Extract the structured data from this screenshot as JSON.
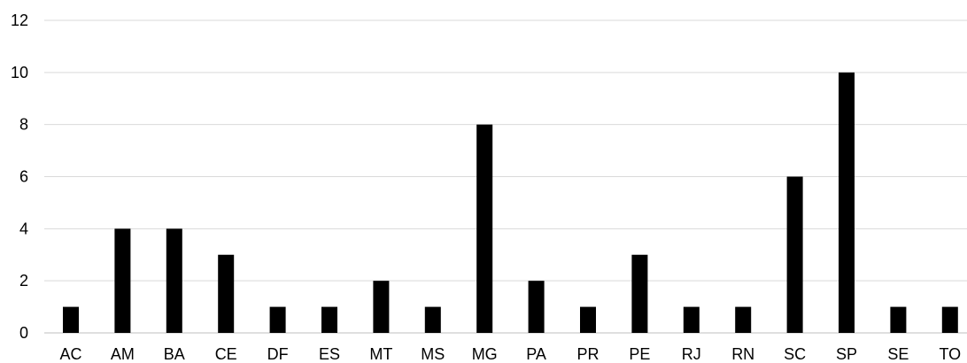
{
  "chart_data": {
    "type": "bar",
    "title": "",
    "xlabel": "",
    "ylabel": "",
    "categories": [
      "AC",
      "AM",
      "BA",
      "CE",
      "DF",
      "ES",
      "MT",
      "MS",
      "MG",
      "PA",
      "PR",
      "PE",
      "RJ",
      "RN",
      "SC",
      "SP",
      "SE",
      "TO"
    ],
    "values": [
      1,
      4,
      4,
      3,
      1,
      1,
      2,
      1,
      8,
      2,
      1,
      3,
      1,
      1,
      6,
      10,
      1,
      1
    ],
    "ylim": [
      0,
      12
    ],
    "yticks": [
      0,
      2,
      4,
      6,
      8,
      10,
      12
    ],
    "grid": true,
    "legend": "none",
    "bar_color": "#000000"
  }
}
